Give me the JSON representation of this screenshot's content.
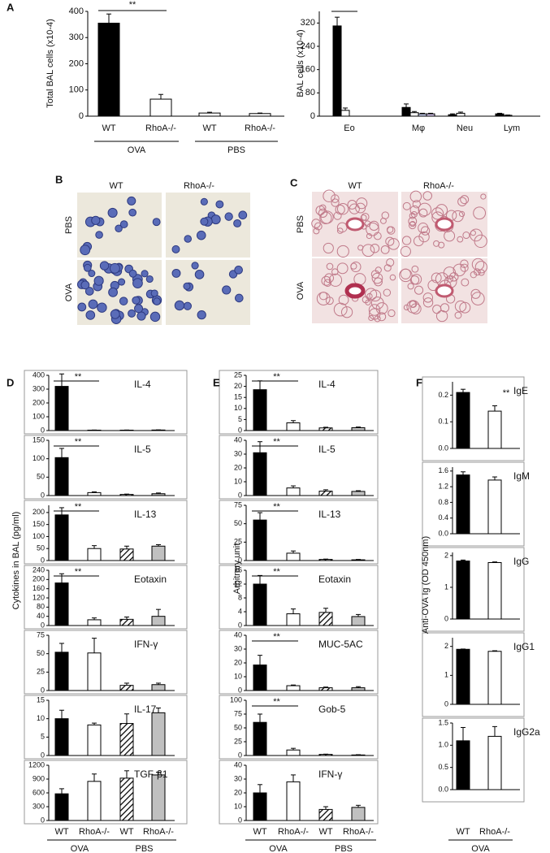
{
  "chart_data": [
    {
      "type": "bar",
      "label": "A",
      "ylabel": "Total BAL cells (x10-4)",
      "categories": [
        "WT",
        "RhoA-/-",
        "WT",
        "RhoA-/-"
      ],
      "groups": [
        "OVA",
        "PBS"
      ],
      "values": [
        355,
        65,
        12,
        10
      ],
      "errors": [
        35,
        18,
        3,
        2
      ],
      "colors": [
        "#000000",
        "#ffffff",
        "#ffffff",
        "#ffffff"
      ],
      "ylim": [
        0,
        400
      ],
      "yticks": [
        0,
        100,
        200,
        300,
        400
      ],
      "annotation": "**"
    },
    {
      "type": "grouped-bar",
      "ylabel": "BAL cells (x10-4)",
      "categories": [
        "Eo",
        "Mφ",
        "Neu",
        "Lym"
      ],
      "series": [
        {
          "color": "#000000",
          "values": [
            310,
            30,
            5,
            8
          ],
          "errors": [
            30,
            12,
            3,
            2
          ]
        },
        {
          "color": "#ffffff",
          "values": [
            20,
            12,
            10,
            3
          ],
          "errors": [
            8,
            4,
            4,
            1
          ]
        },
        {
          "color": "#c8d0f0",
          "values": [
            null,
            8,
            null,
            null
          ],
          "errors": [
            null,
            2,
            null,
            null
          ]
        },
        {
          "color": "#d8c8f0",
          "values": [
            null,
            8,
            null,
            null
          ],
          "errors": [
            null,
            2,
            null,
            null
          ]
        }
      ],
      "ylim": [
        0,
        360
      ],
      "yticks": [
        0,
        80,
        160,
        240,
        320
      ]
    },
    {
      "type": "bar-panel",
      "label": "D",
      "ylabel": "Cytokines in BAL (pg/ml)",
      "categories": [
        "WT",
        "RhoA-/-",
        "WT",
        "RhoA-/-"
      ],
      "groups": [
        "OVA",
        "PBS"
      ],
      "colors": [
        "#000000",
        "#ffffff",
        "hatched",
        "#c0c0c0"
      ],
      "subplots": [
        {
          "title": "IL-4",
          "values": [
            320,
            3,
            3,
            4
          ],
          "errors": [
            90,
            1,
            1,
            1
          ],
          "ylim": [
            0,
            400
          ],
          "yticks": [
            0,
            100,
            200,
            300,
            400
          ],
          "annotation": "**"
        },
        {
          "title": "IL-5",
          "values": [
            103,
            8,
            3,
            5
          ],
          "errors": [
            25,
            2,
            1,
            2
          ],
          "ylim": [
            0,
            150
          ],
          "yticks": [
            0,
            50,
            100,
            150
          ],
          "annotation": "**"
        },
        {
          "title": "IL-13",
          "values": [
            190,
            50,
            48,
            60
          ],
          "errors": [
            30,
            12,
            12,
            6
          ],
          "ylim": [
            0,
            230
          ],
          "yticks": [
            0,
            50,
            100,
            150,
            200
          ],
          "annotation": "**"
        },
        {
          "title": "Eotaxin",
          "values": [
            185,
            25,
            27,
            40
          ],
          "errors": [
            40,
            8,
            10,
            30
          ],
          "ylim": [
            0,
            240
          ],
          "yticks": [
            0,
            40,
            80,
            120,
            160,
            200,
            240
          ],
          "annotation": "**"
        },
        {
          "title": "IFN-γ",
          "values": [
            52,
            51,
            7,
            8
          ],
          "errors": [
            12,
            20,
            3,
            2
          ],
          "ylim": [
            0,
            75
          ],
          "yticks": [
            0,
            25,
            50,
            75
          ]
        },
        {
          "title": "IL-17",
          "values": [
            10,
            8.3,
            8.7,
            11.6
          ],
          "errors": [
            2.3,
            0.5,
            2.6,
            1.3
          ],
          "ylim": [
            0,
            15
          ],
          "yticks": [
            0,
            5,
            10,
            15
          ]
        },
        {
          "title": "TGF-β1",
          "values": [
            580,
            850,
            920,
            990
          ],
          "errors": [
            110,
            160,
            160,
            60
          ],
          "ylim": [
            0,
            1200
          ],
          "yticks": [
            0,
            300,
            600,
            900,
            1200
          ]
        }
      ]
    },
    {
      "type": "bar-panel",
      "label": "E",
      "ylabel": "Arbitrary unit",
      "categories": [
        "WT",
        "RhoA-/-",
        "WT",
        "RhoA-/-"
      ],
      "groups": [
        "OVA",
        "PBS"
      ],
      "colors": [
        "#000000",
        "#ffffff",
        "hatched",
        "#c0c0c0"
      ],
      "subplots": [
        {
          "title": "IL-4",
          "values": [
            18.5,
            3.5,
            1.2,
            1.3
          ],
          "errors": [
            4,
            1,
            0.3,
            0.3
          ],
          "ylim": [
            0,
            25
          ],
          "yticks": [
            0,
            5,
            10,
            15,
            20,
            25
          ],
          "annotation": "**"
        },
        {
          "title": "IL-5",
          "values": [
            31,
            5.5,
            3.2,
            3
          ],
          "errors": [
            8,
            1.5,
            1,
            0.5
          ],
          "ylim": [
            0,
            40
          ],
          "yticks": [
            0,
            10,
            20,
            30,
            40
          ],
          "annotation": "**"
        },
        {
          "title": "IL-13",
          "values": [
            55,
            10,
            1.5,
            1
          ],
          "errors": [
            10,
            3,
            0.5,
            0.5
          ],
          "ylim": [
            0,
            75
          ],
          "yticks": [
            0,
            25,
            50,
            75
          ],
          "annotation": "**"
        },
        {
          "title": "Eotaxin",
          "values": [
            12,
            3.4,
            3.8,
            2.6
          ],
          "errors": [
            2.5,
            1.4,
            1.2,
            0.6
          ],
          "ylim": [
            0,
            16
          ],
          "yticks": [
            0,
            4,
            8,
            12,
            16
          ],
          "annotation": "**"
        },
        {
          "title": "MUC-5AC",
          "values": [
            18.5,
            3.5,
            2,
            2
          ],
          "errors": [
            7,
            0.5,
            0.5,
            0.8
          ],
          "ylim": [
            0,
            40
          ],
          "yticks": [
            0,
            10,
            20,
            30,
            40
          ],
          "annotation": "**"
        },
        {
          "title": "Gob-5",
          "values": [
            60,
            10,
            2,
            1
          ],
          "errors": [
            15,
            3,
            0.5,
            0.5
          ],
          "ylim": [
            0,
            100
          ],
          "yticks": [
            0,
            25,
            50,
            75,
            100
          ],
          "annotation": "**"
        },
        {
          "title": "IFN-γ",
          "values": [
            20,
            28,
            8,
            9.5
          ],
          "errors": [
            6,
            5,
            2,
            1.5
          ],
          "ylim": [
            0,
            40
          ],
          "yticks": [
            0,
            10,
            20,
            30,
            40
          ]
        }
      ]
    },
    {
      "type": "bar-panel",
      "label": "F",
      "ylabel": "Anti-OVA Ig (OD 450nm)",
      "categories": [
        "WT",
        "RhoA-/-"
      ],
      "groups": [
        "OVA"
      ],
      "colors": [
        "#000000",
        "#ffffff"
      ],
      "subplots": [
        {
          "title": "IgE",
          "values": [
            0.21,
            0.14
          ],
          "errors": [
            0.012,
            0.02
          ],
          "ylim": [
            0,
            0.25
          ],
          "yticks": [
            {
              "value": 0,
              "label": "0.0"
            },
            0.1,
            0.2
          ],
          "annotation": "**"
        },
        {
          "title": "IgM",
          "values": [
            1.5,
            1.37
          ],
          "errors": [
            0.08,
            0.08
          ],
          "ylim": [
            0,
            1.7
          ],
          "yticks": [
            {
              "value": 0,
              "label": "0.0"
            },
            0.4,
            0.8,
            1.2,
            1.6
          ]
        },
        {
          "title": "IgG",
          "values": [
            1.83,
            1.78
          ],
          "errors": [
            0.03,
            0.02
          ],
          "ylim": [
            0,
            2.1
          ],
          "yticks": [
            0,
            1,
            2
          ]
        },
        {
          "title": "IgG1",
          "values": [
            1.9,
            1.83
          ],
          "errors": [
            0.01,
            0.02
          ],
          "ylim": [
            0,
            2.3
          ],
          "yticks": [
            0,
            1,
            2
          ]
        },
        {
          "title": "IgG2a",
          "values": [
            1.1,
            1.2
          ],
          "errors": [
            0.3,
            0.22
          ],
          "ylim": [
            0,
            1.5
          ],
          "yticks": [
            {
              "value": 0,
              "label": "0.0"
            },
            0.5,
            {
              "value": 1,
              "label": "1.0"
            },
            1.5
          ]
        }
      ]
    }
  ],
  "micrographs": [
    {
      "label": "B",
      "columns": [
        "WT",
        "RhoA-/-"
      ],
      "rows": [
        "PBS",
        "OVA"
      ]
    },
    {
      "label": "C",
      "columns": [
        "WT",
        "RhoA-/-"
      ],
      "rows": [
        "PBS",
        "OVA"
      ]
    }
  ]
}
